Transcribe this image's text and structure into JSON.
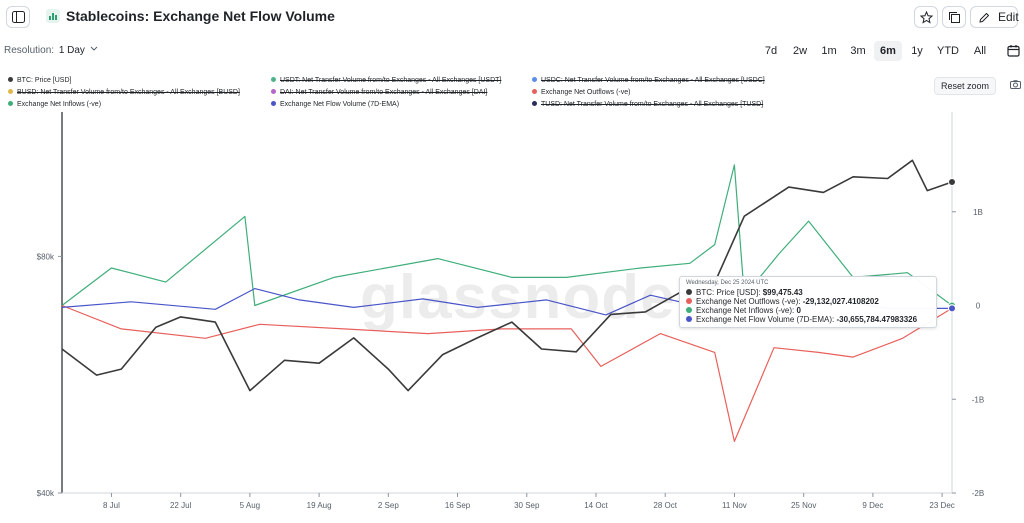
{
  "header": {
    "title": "Stablecoins: Exchange Net Flow Volume",
    "edit_label": "Edit"
  },
  "resolution": {
    "label": "Resolution:",
    "value": "1 Day"
  },
  "ranges": [
    {
      "label": "7d",
      "active": false
    },
    {
      "label": "2w",
      "active": false
    },
    {
      "label": "1m",
      "active": false
    },
    {
      "label": "3m",
      "active": false
    },
    {
      "label": "6m",
      "active": true
    },
    {
      "label": "1y",
      "active": false
    },
    {
      "label": "YTD",
      "active": false
    },
    {
      "label": "All",
      "active": false
    }
  ],
  "reset_zoom_label": "Reset zoom",
  "watermark": "glassnode",
  "legend": [
    {
      "label": "BTC: Price [USD]",
      "color": "#3a3a3a",
      "hidden": false
    },
    {
      "label": "USDT: Net Transfer Volume from/to Exchanges - All Exchanges [USDT]",
      "color": "#4db38a",
      "hidden": true
    },
    {
      "label": "USDC: Net Transfer Volume from/to Exchanges - All Exchanges [USDC]",
      "color": "#5b8def",
      "hidden": true
    },
    {
      "label": "BUSD: Net Transfer Volume from/to Exchanges - All Exchanges [BUSD]",
      "color": "#e0b84a",
      "hidden": true
    },
    {
      "label": "DAI: Net Transfer Volume from/to Exchanges - All Exchanges [DAI]",
      "color": "#b467c9",
      "hidden": true
    },
    {
      "label": "Exchange Net Outflows (-ve)",
      "color": "#e8605c",
      "hidden": false
    },
    {
      "label": "Exchange Net Inflows (-ve)",
      "color": "#3fae7a",
      "hidden": false
    },
    {
      "label": "Exchange Net Flow Volume (7D-EMA)",
      "color": "#4a55c9",
      "hidden": false
    },
    {
      "label": "TUSD: Net Transfer Volume from/to Exchanges - All Exchanges [TUSD]",
      "color": "#2b2d5c",
      "hidden": true
    }
  ],
  "tooltip": {
    "date": "Wednesday, Dec 25 2024 UTC",
    "rows": [
      {
        "label": "BTC: Price [USD]:",
        "value": "$99,475.43",
        "color": "#3a3a3a"
      },
      {
        "label": "Exchange Net Outflows (-ve):",
        "value": "-29,132,027.4108202",
        "color": "#e8605c"
      },
      {
        "label": "Exchange Net Inflows (-ve):",
        "value": "0",
        "color": "#3fae7a"
      },
      {
        "label": "Exchange Net Flow Volume (7D-EMA):",
        "value": "-30,655,784.47983326",
        "color": "#4a55c9"
      }
    ]
  },
  "chart_data": {
    "type": "line",
    "title": "Stablecoins: Exchange Net Flow Volume",
    "x_start": "2024-06-28",
    "x_end": "2024-12-25",
    "x_ticks": [
      "8 Jul",
      "22 Jul",
      "5 Aug",
      "19 Aug",
      "2 Sep",
      "16 Sep",
      "30 Sep",
      "14 Oct",
      "28 Oct",
      "11 Nov",
      "25 Nov",
      "9 Dec",
      "23 Dec"
    ],
    "y_left": {
      "ticks": [
        "$40k",
        "$80k"
      ],
      "tick_values": [
        40000,
        80000
      ],
      "range": [
        40000,
        120000
      ],
      "scale": "log"
    },
    "y_right": {
      "ticks": [
        "-2B",
        "-1B",
        "0",
        "1B"
      ],
      "tick_values": [
        -2000000000,
        -1000000000,
        0,
        1000000000
      ],
      "range": [
        -2000000000,
        2000000000
      ]
    },
    "grid": false,
    "legend_position": "top",
    "series": [
      {
        "name": "BTC: Price [USD]",
        "axis": "left",
        "color": "#3a3a3a",
        "x": [
          "2024-06-28",
          "2024-07-05",
          "2024-07-10",
          "2024-07-17",
          "2024-07-22",
          "2024-07-29",
          "2024-08-05",
          "2024-08-12",
          "2024-08-19",
          "2024-08-26",
          "2024-09-02",
          "2024-09-06",
          "2024-09-13",
          "2024-09-20",
          "2024-09-27",
          "2024-10-03",
          "2024-10-10",
          "2024-10-17",
          "2024-10-24",
          "2024-10-31",
          "2024-11-05",
          "2024-11-08",
          "2024-11-13",
          "2024-11-22",
          "2024-11-29",
          "2024-12-05",
          "2024-12-12",
          "2024-12-17",
          "2024-12-20",
          "2024-12-25"
        ],
        "values": [
          61000,
          56500,
          57500,
          65000,
          67000,
          66000,
          54000,
          59000,
          58500,
          63000,
          57500,
          54000,
          60000,
          63000,
          66000,
          61000,
          60500,
          67500,
          68000,
          72000,
          69500,
          76500,
          90000,
          98000,
          96500,
          101000,
          100500,
          106000,
          97000,
          99475.43
        ]
      },
      {
        "name": "Exchange Net Inflows (-ve)",
        "axis": "right",
        "color": "#3fae7a",
        "x": [
          "2024-06-28",
          "2024-07-08",
          "2024-07-19",
          "2024-08-04",
          "2024-08-06",
          "2024-08-22",
          "2024-09-12",
          "2024-09-27",
          "2024-10-08",
          "2024-10-23",
          "2024-11-02",
          "2024-11-07",
          "2024-11-11",
          "2024-11-13",
          "2024-11-20",
          "2024-11-26",
          "2024-12-05",
          "2024-12-16",
          "2024-12-25"
        ],
        "values": [
          0,
          400000000,
          250000000,
          950000000,
          0,
          300000000,
          500000000,
          300000000,
          300000000,
          400000000,
          450000000,
          650000000,
          1500000000,
          100000000,
          550000000,
          900000000,
          300000000,
          350000000,
          0
        ]
      },
      {
        "name": "Exchange Net Outflows (-ve)",
        "axis": "right",
        "color": "#e8605c",
        "x": [
          "2024-06-28",
          "2024-07-10",
          "2024-07-27",
          "2024-08-07",
          "2024-08-24",
          "2024-09-10",
          "2024-09-25",
          "2024-10-09",
          "2024-10-15",
          "2024-10-27",
          "2024-11-07",
          "2024-11-11",
          "2024-11-19",
          "2024-11-28",
          "2024-12-05",
          "2024-12-15",
          "2024-12-25"
        ],
        "values": [
          0,
          -250000000,
          -350000000,
          -200000000,
          -250000000,
          -300000000,
          -250000000,
          -250000000,
          -650000000,
          -300000000,
          -500000000,
          -1450000000,
          -450000000,
          -500000000,
          -550000000,
          -350000000,
          -29132027.4108202
        ]
      },
      {
        "name": "Exchange Net Flow Volume (7D-EMA)",
        "axis": "right",
        "color": "#4a55c9",
        "x": [
          "2024-06-28",
          "2024-07-12",
          "2024-07-29",
          "2024-08-06",
          "2024-08-15",
          "2024-08-26",
          "2024-09-09",
          "2024-09-20",
          "2024-10-04",
          "2024-10-16",
          "2024-10-25",
          "2024-11-05",
          "2024-11-11",
          "2024-11-20",
          "2024-12-02",
          "2024-12-12",
          "2024-12-25"
        ],
        "values": [
          -20000000,
          40000000,
          -40000000,
          180000000,
          60000000,
          -20000000,
          70000000,
          -20000000,
          60000000,
          -100000000,
          110000000,
          -20000000,
          30000000,
          -60000000,
          50000000,
          -30000000,
          -30655784.47983326
        ]
      }
    ]
  }
}
